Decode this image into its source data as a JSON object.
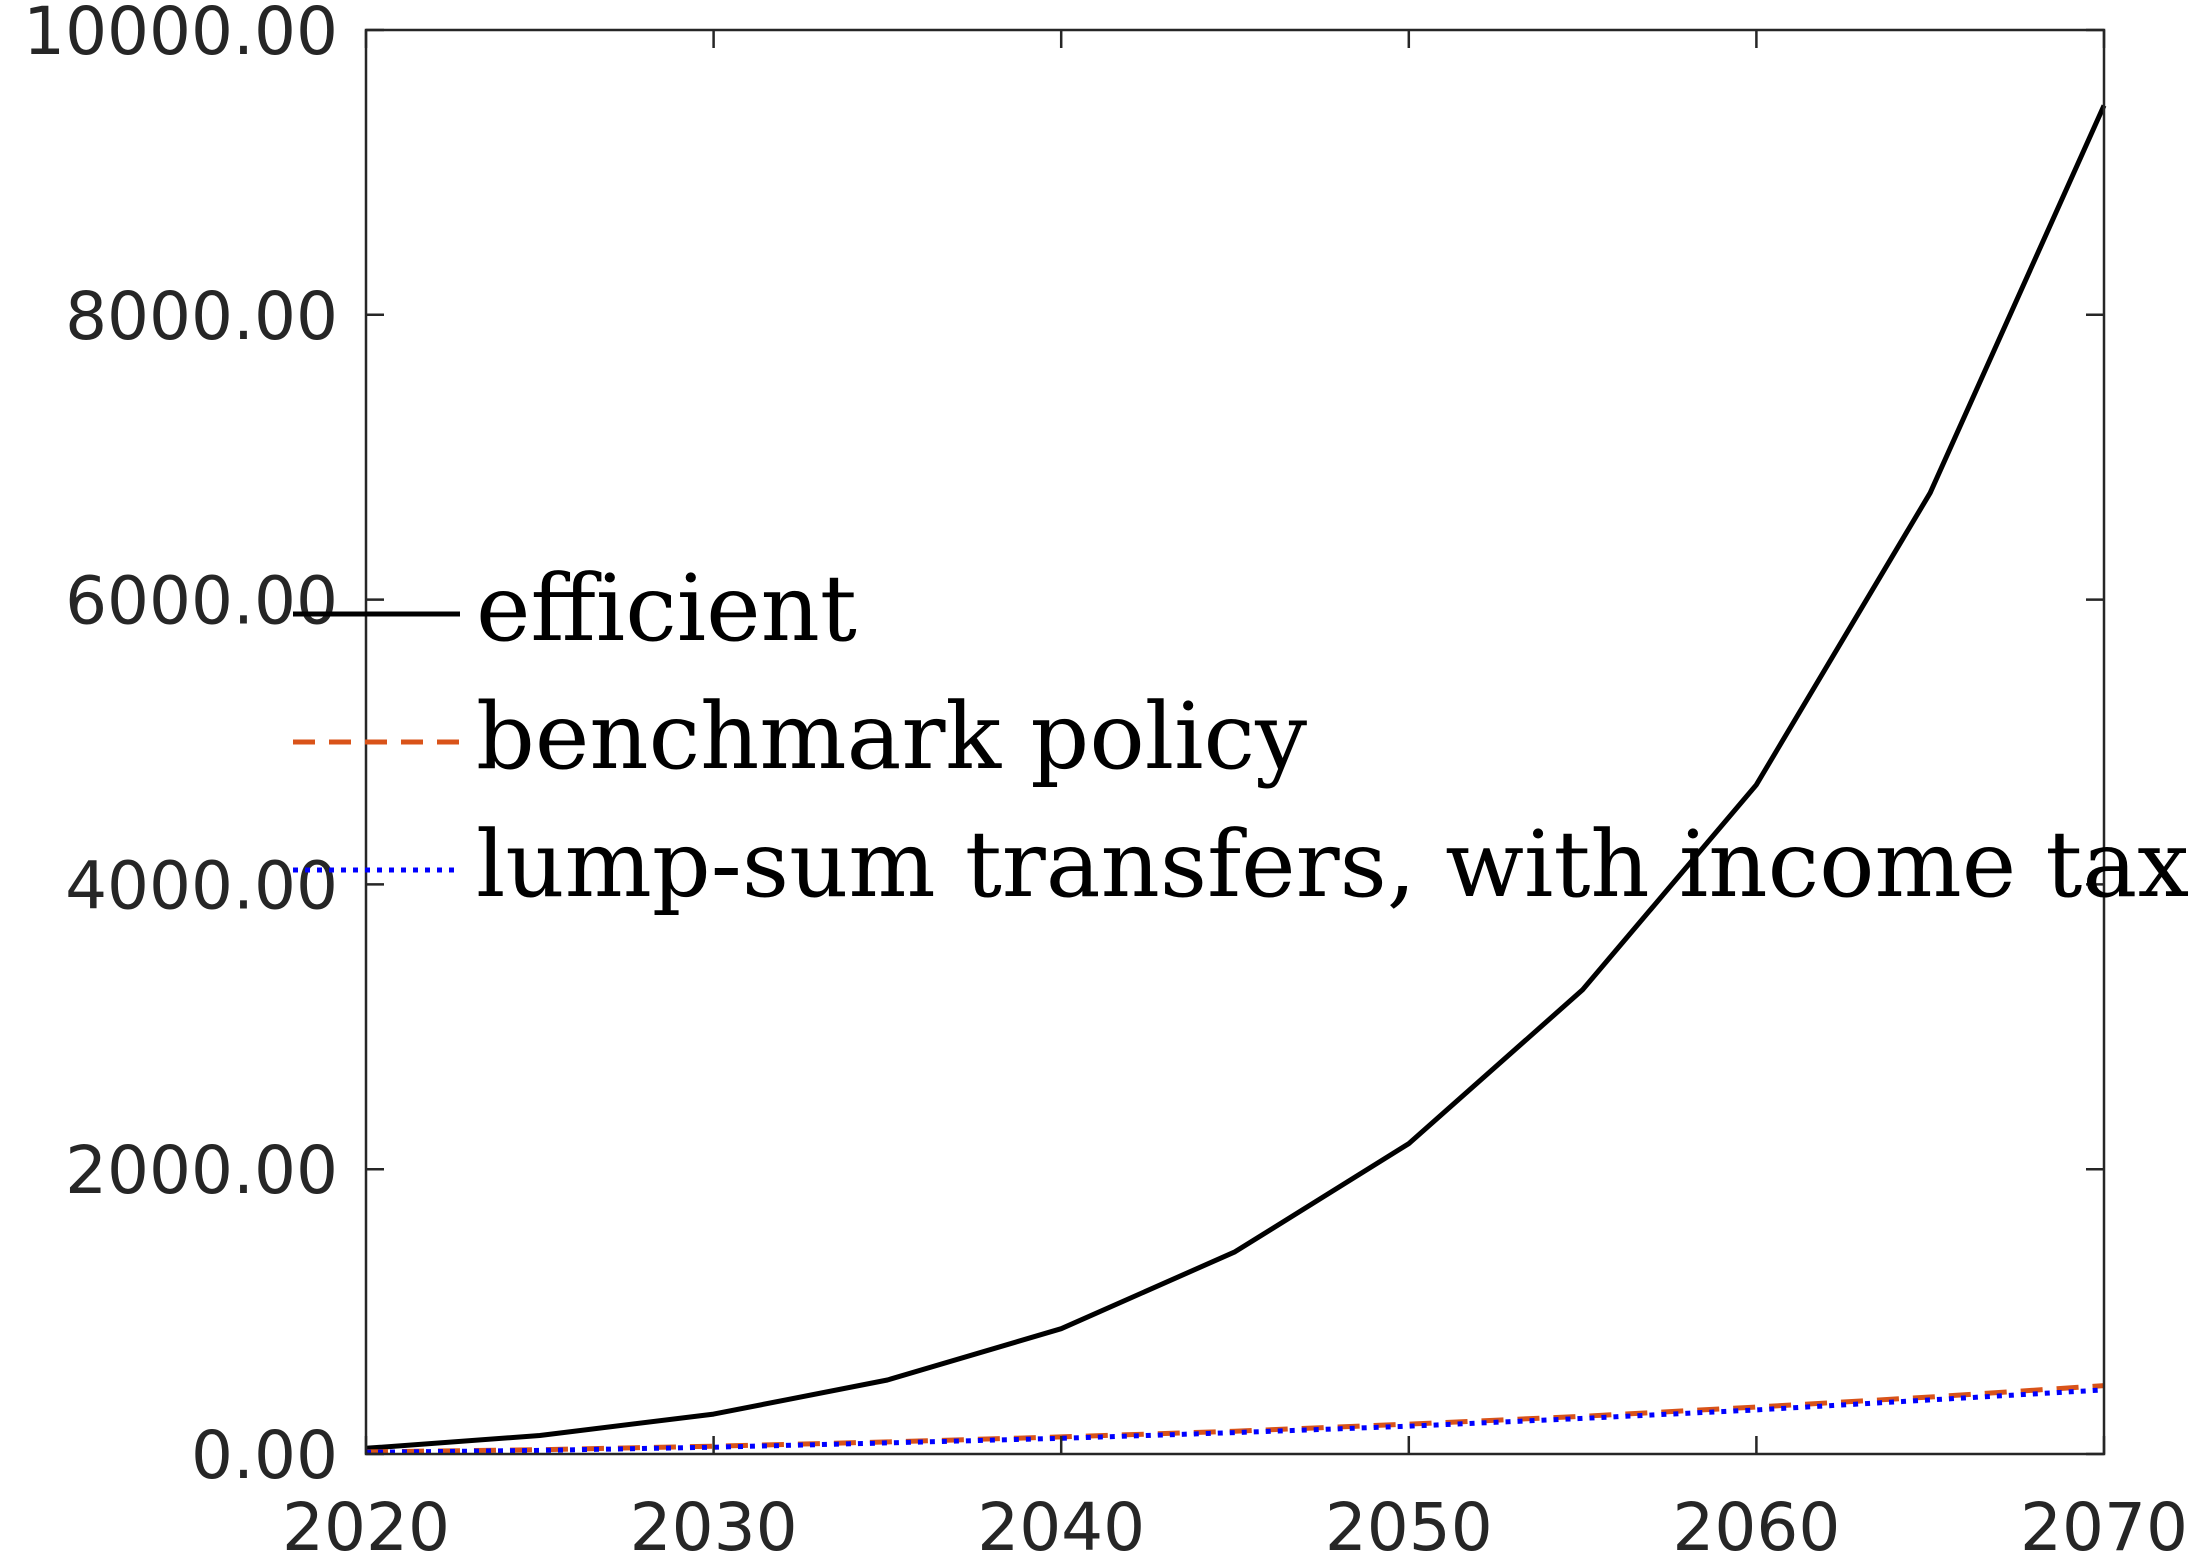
{
  "chart_data": {
    "type": "line",
    "title": "",
    "xlabel": "",
    "ylabel": "",
    "xlim": [
      2020,
      2070
    ],
    "ylim": [
      0,
      10000
    ],
    "xticks": [
      2020,
      2030,
      2040,
      2050,
      2060,
      2070
    ],
    "xtick_labels": [
      "2020",
      "2030",
      "2040",
      "2050",
      "2060",
      "2070"
    ],
    "yticks": [
      0,
      2000,
      4000,
      6000,
      8000,
      10000
    ],
    "ytick_labels": [
      "0.00",
      "2000.00",
      "4000.00",
      "6000.00",
      "8000.00",
      "10000.00"
    ],
    "grid": false,
    "legend_position": "middle-left",
    "x": [
      2020,
      2025,
      2030,
      2035,
      2040,
      2045,
      2050,
      2055,
      2060,
      2065,
      2070
    ],
    "series": [
      {
        "name": "efficient",
        "color": "#000000",
        "style": "solid",
        "values": [
          40,
          130,
          280,
          520,
          880,
          1420,
          2180,
          3260,
          4700,
          6750,
          9470
        ]
      },
      {
        "name": "benchmark policy",
        "color": "#D95319",
        "style": "dashed",
        "values": [
          15,
          30,
          55,
          85,
          120,
          160,
          210,
          265,
          330,
          400,
          480
        ]
      },
      {
        "name": "lump-sum transfers, with income tax",
        "color": "#0000FF",
        "style": "dotted",
        "values": [
          12,
          25,
          48,
          78,
          110,
          150,
          195,
          250,
          310,
          380,
          450
        ]
      }
    ]
  }
}
